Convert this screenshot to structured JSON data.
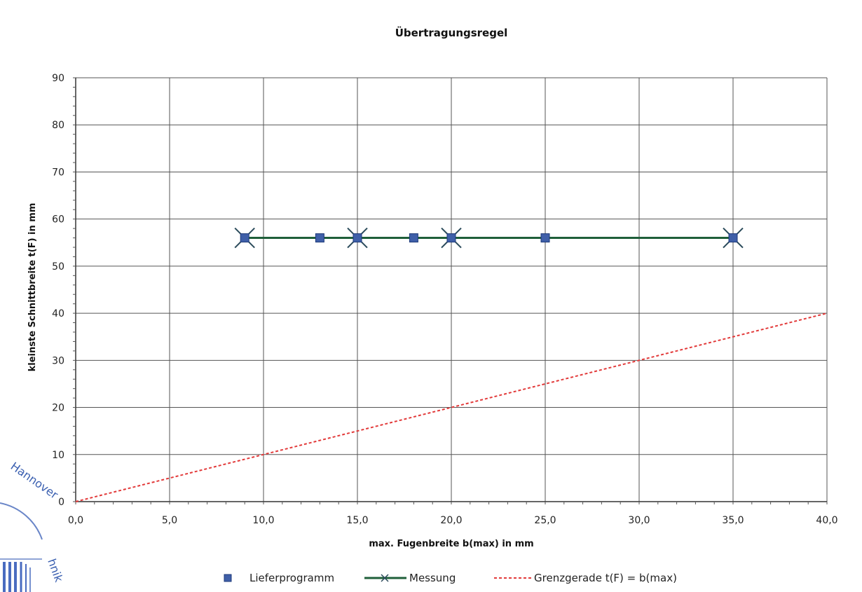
{
  "chart_data": {
    "type": "line",
    "title": "Übertragungsregel",
    "xlabel": "max. Fugenbreite b(max) in mm",
    "ylabel": "kleinste Schnittbreite t(F) in mm",
    "xlim": [
      0,
      40
    ],
    "ylim": [
      0,
      90
    ],
    "x_ticks": [
      "0,0",
      "5,0",
      "10,0",
      "15,0",
      "20,0",
      "25,0",
      "30,0",
      "35,0",
      "40,0"
    ],
    "y_ticks": [
      "0",
      "10",
      "20",
      "30",
      "40",
      "50",
      "60",
      "70",
      "80",
      "90"
    ],
    "grid": true,
    "legend_position": "bottom",
    "series": [
      {
        "name": "Lieferprogramm",
        "kind": "scatter",
        "marker": "square",
        "color": "#3f5fa8",
        "x": [
          9,
          13,
          15,
          18,
          20,
          25,
          35
        ],
        "y": [
          56,
          56,
          56,
          56,
          56,
          56,
          56
        ]
      },
      {
        "name": "Messung",
        "kind": "line",
        "marker": "x",
        "color": "#1f5f3a",
        "x": [
          9,
          15,
          20,
          35
        ],
        "y": [
          56,
          56,
          56,
          56
        ]
      },
      {
        "name": "Grenzgerade t(F) = b(max)",
        "kind": "dashed-line",
        "color": "#e23a3a",
        "x": [
          0,
          40
        ],
        "y": [
          0,
          40
        ]
      }
    ]
  },
  "stamp": {
    "text_top": "Hannover",
    "text_side": "hnik"
  }
}
